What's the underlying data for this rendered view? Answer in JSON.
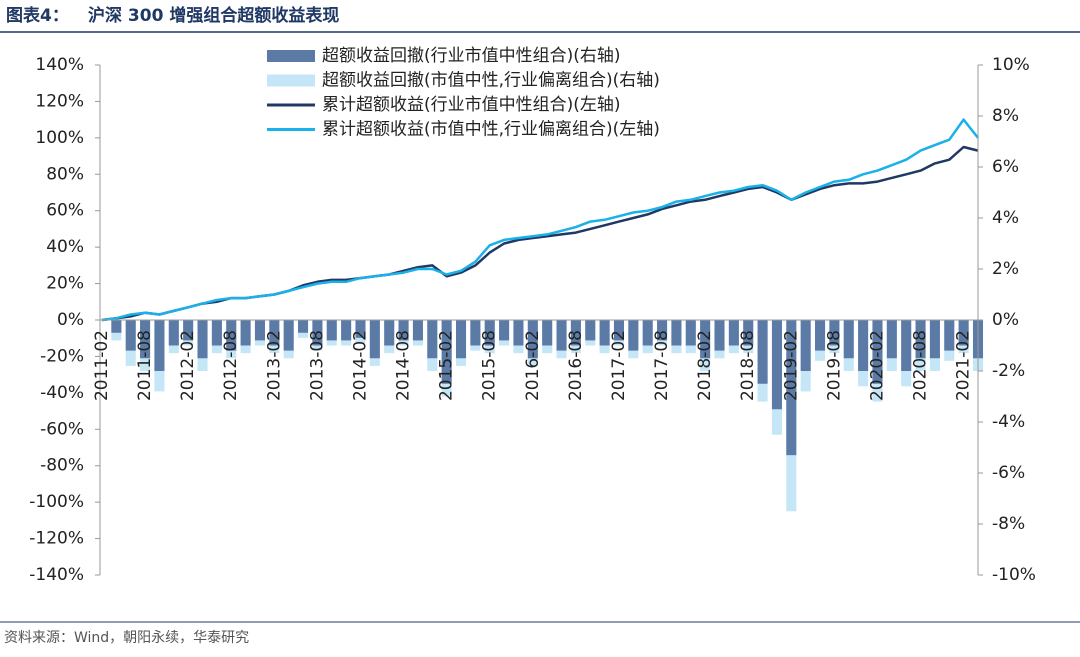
{
  "chart_data": {
    "type": "bar-line",
    "title_label": "图表4：",
    "title": "沪深 300 增强组合超额收益表现",
    "source": "资料来源：Wind，朝阳永续，华泰研究",
    "x": [
      "2011-02",
      "2011-04",
      "2011-06",
      "2011-08",
      "2011-10",
      "2011-12",
      "2012-02",
      "2012-04",
      "2012-06",
      "2012-08",
      "2012-10",
      "2012-12",
      "2013-02",
      "2013-04",
      "2013-06",
      "2013-08",
      "2013-10",
      "2013-12",
      "2014-02",
      "2014-04",
      "2014-06",
      "2014-08",
      "2014-10",
      "2014-12",
      "2015-02",
      "2015-04",
      "2015-06",
      "2015-08",
      "2015-10",
      "2015-12",
      "2016-02",
      "2016-04",
      "2016-06",
      "2016-08",
      "2016-10",
      "2016-12",
      "2017-02",
      "2017-04",
      "2017-06",
      "2017-08",
      "2017-10",
      "2017-12",
      "2018-02",
      "2018-04",
      "2018-06",
      "2018-08",
      "2018-10",
      "2018-12",
      "2019-02",
      "2019-04",
      "2019-06",
      "2019-08",
      "2019-10",
      "2019-12",
      "2020-02",
      "2020-04",
      "2020-06",
      "2020-08",
      "2020-10",
      "2020-12",
      "2021-02",
      "2021-04"
    ],
    "xticks": [
      "2011-02",
      "2011-08",
      "2012-02",
      "2012-08",
      "2013-02",
      "2013-08",
      "2014-02",
      "2014-08",
      "2015-02",
      "2015-08",
      "2016-02",
      "2016-08",
      "2017-02",
      "2017-08",
      "2018-02",
      "2018-08",
      "2019-02",
      "2019-08",
      "2020-02",
      "2020-08",
      "2021-02"
    ],
    "ylim": [
      -140,
      140
    ],
    "yticks": [
      {
        "value": 140,
        "label": "140%"
      },
      {
        "value": 120,
        "label": "120%"
      },
      {
        "value": 100,
        "label": "100%"
      },
      {
        "value": 80,
        "label": "80%"
      },
      {
        "value": 60,
        "label": "60%"
      },
      {
        "value": 40,
        "label": "40%"
      },
      {
        "value": 20,
        "label": "20%"
      },
      {
        "value": 0,
        "label": "0%"
      },
      {
        "value": -20,
        "label": "-20%"
      },
      {
        "value": -40,
        "label": "-40%"
      },
      {
        "value": -60,
        "label": "-60%"
      },
      {
        "value": -80,
        "label": "-80%"
      },
      {
        "value": -100,
        "label": "-100%"
      },
      {
        "value": -120,
        "label": "-120%"
      },
      {
        "value": -140,
        "label": "-140%"
      }
    ],
    "y2lim": [
      -10,
      10
    ],
    "y2ticks": [
      {
        "value": 10,
        "label": "10%"
      },
      {
        "value": 8,
        "label": "8%"
      },
      {
        "value": 6,
        "label": "6%"
      },
      {
        "value": 4,
        "label": "4%"
      },
      {
        "value": 2,
        "label": "2%"
      },
      {
        "value": 0,
        "label": "0%"
      },
      {
        "value": -2,
        "label": "-2%"
      },
      {
        "value": -4,
        "label": "-4%"
      },
      {
        "value": -6,
        "label": "-6%"
      },
      {
        "value": -8,
        "label": "-8%"
      },
      {
        "value": -10,
        "label": "-10%"
      }
    ],
    "series": [
      {
        "name": "超额收益回撤(行业市值中性组合)(右轴)",
        "type": "bar",
        "axis": "y2",
        "color": "#5b7ba6",
        "values": [
          0,
          -0.5,
          -1.2,
          -1.5,
          -2,
          -1,
          -0.8,
          -1.5,
          -1,
          -1.2,
          -1,
          -0.8,
          -1,
          -1.2,
          -0.5,
          -1,
          -0.8,
          -0.8,
          -0.7,
          -1.5,
          -1,
          -0.8,
          -0.8,
          -1.5,
          -2.5,
          -1.5,
          -1,
          -1,
          -0.8,
          -1,
          -1.5,
          -1,
          -1.2,
          -1,
          -0.8,
          -1,
          -0.8,
          -1.2,
          -1,
          -0.8,
          -1,
          -1,
          -1.5,
          -1.2,
          -1,
          -1,
          -2.5,
          -3.5,
          -5.3,
          -2,
          -1.2,
          -1,
          -1.5,
          -2,
          -2.5,
          -1.5,
          -2,
          -1.5,
          -1.5,
          -1.2,
          -1,
          -1.5
        ]
      },
      {
        "name": "超额收益回撤(市值中性,行业偏离组合)(右轴)",
        "type": "bar",
        "axis": "y2",
        "color": "#c5e6f6",
        "values": [
          0,
          -0.8,
          -1.8,
          -2,
          -2.8,
          -1.3,
          -1,
          -2,
          -1.3,
          -1.5,
          -1.3,
          -1,
          -1.3,
          -1.5,
          -0.7,
          -1.2,
          -1,
          -1,
          -0.9,
          -1.8,
          -1.3,
          -1,
          -1,
          -2,
          -3,
          -1.8,
          -1.2,
          -1.3,
          -1,
          -1.3,
          -1.8,
          -1.3,
          -1.5,
          -1.3,
          -1,
          -1.3,
          -1,
          -1.5,
          -1.3,
          -1,
          -1.3,
          -1.3,
          -2,
          -1.5,
          -1.3,
          -1.3,
          -3.2,
          -4.5,
          -7.5,
          -2.8,
          -1.6,
          -1.3,
          -2,
          -2.6,
          -3.2,
          -2,
          -2.6,
          -2,
          -2,
          -1.6,
          -1.3,
          -2
        ]
      },
      {
        "name": "累计超额收益(行业市值中性组合)(左轴)",
        "type": "line",
        "color": "#203864",
        "values": [
          0,
          1,
          2,
          4,
          3,
          5,
          7,
          9,
          10,
          12,
          12,
          13,
          14,
          16,
          19,
          21,
          22,
          22,
          23,
          24,
          25,
          27,
          29,
          30,
          24,
          26,
          30,
          37,
          42,
          44,
          45,
          46,
          47,
          48,
          50,
          52,
          54,
          56,
          58,
          61,
          63,
          65,
          66,
          68,
          70,
          72,
          73,
          70,
          66,
          69,
          72,
          74,
          75,
          75,
          76,
          78,
          80,
          82,
          86,
          88,
          95,
          93
        ]
      },
      {
        "name": "累计超额收益(市值中性,行业偏离组合)(左轴)",
        "type": "line",
        "color": "#1ab0e8",
        "values": [
          0,
          1,
          3,
          4,
          3,
          5,
          7,
          9,
          11,
          12,
          12,
          13,
          14,
          16,
          18,
          20,
          21,
          21,
          23,
          24,
          25,
          26,
          28,
          28,
          25,
          27,
          32,
          41,
          44,
          45,
          46,
          47,
          49,
          51,
          54,
          55,
          57,
          59,
          60,
          62,
          65,
          66,
          68,
          70,
          71,
          73,
          74,
          71,
          66,
          70,
          73,
          76,
          77,
          80,
          82,
          85,
          88,
          93,
          96,
          99,
          110,
          100
        ]
      }
    ]
  }
}
